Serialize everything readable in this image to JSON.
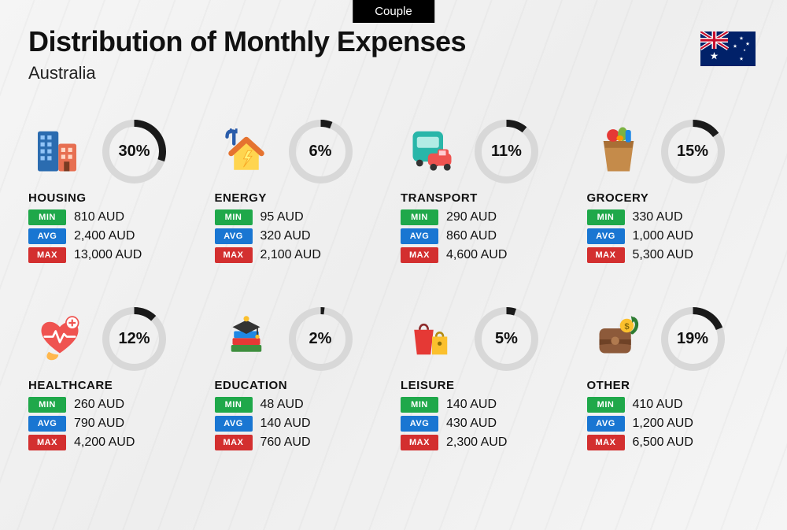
{
  "header": {
    "tag": "Couple",
    "title": "Distribution of Monthly Expenses",
    "subtitle": "Australia"
  },
  "style": {
    "donut_track_color": "#d8d8d8",
    "donut_fill_color": "#1a1a1a",
    "donut_stroke_width": 9,
    "badge_colors": {
      "min": "#1fa84a",
      "avg": "#1976d2",
      "max": "#d32f2f"
    },
    "badge_labels": {
      "min": "MIN",
      "avg": "AVG",
      "max": "MAX"
    }
  },
  "currency": "AUD",
  "categories": [
    {
      "name": "HOUSING",
      "icon": "housing",
      "pct": 30,
      "min": "810",
      "avg": "2,400",
      "max": "13,000"
    },
    {
      "name": "ENERGY",
      "icon": "energy",
      "pct": 6,
      "min": "95",
      "avg": "320",
      "max": "2,100"
    },
    {
      "name": "TRANSPORT",
      "icon": "transport",
      "pct": 11,
      "min": "290",
      "avg": "860",
      "max": "4,600"
    },
    {
      "name": "GROCERY",
      "icon": "grocery",
      "pct": 15,
      "min": "330",
      "avg": "1,000",
      "max": "5,300"
    },
    {
      "name": "HEALTHCARE",
      "icon": "healthcare",
      "pct": 12,
      "min": "260",
      "avg": "790",
      "max": "4,200"
    },
    {
      "name": "EDUCATION",
      "icon": "education",
      "pct": 2,
      "min": "48",
      "avg": "140",
      "max": "760"
    },
    {
      "name": "LEISURE",
      "icon": "leisure",
      "pct": 5,
      "min": "140",
      "avg": "430",
      "max": "2,300"
    },
    {
      "name": "OTHER",
      "icon": "other",
      "pct": 19,
      "min": "410",
      "avg": "1,200",
      "max": "6,500"
    }
  ]
}
